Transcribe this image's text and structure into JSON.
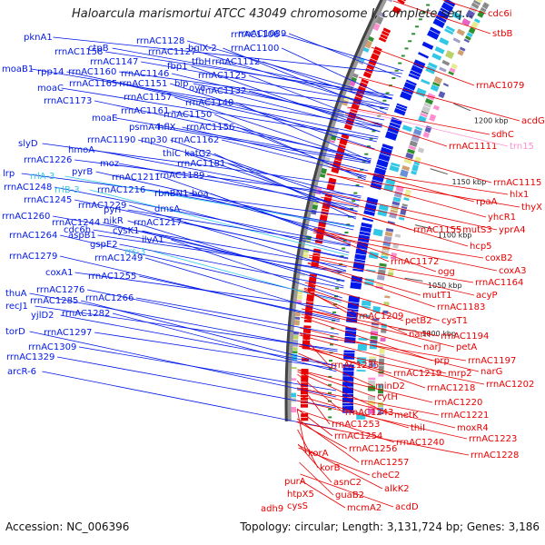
{
  "title": "Haloarcula marismortui ATCC 43049 chromosome I, complete seq...",
  "footer": {
    "accession": "Accession: NC_006396",
    "summary": "Topology: circular; Length: 3,131,724 bp; Genes: 3,186"
  },
  "colors": {
    "left_strand": "#0018e8",
    "right_strand": "#e80000",
    "rna": "#33c7e6",
    "trna_pink": "#ff8fd0"
  },
  "ticks": [
    "1000 kbp",
    "1050 kbp",
    "1100 kbp",
    "1150 kbp",
    "1200 kbp"
  ],
  "left_labels": [
    "pknA1",
    "rrnAC1158",
    "ctpB",
    "rrnAC1128",
    "bglX-2",
    "rrnAC1106",
    "rrnAC1089",
    "rrnAC1100",
    "moaB1",
    "rpp14",
    "rrnAC1160",
    "rrnAC1147",
    "rrnAC1146",
    "rrnAC1127",
    "fbp1",
    "tfbH",
    "rrnAC1112",
    "moaC",
    "rrnAC1165",
    "rrnAC1151",
    "blp",
    "oye",
    "rrnAC1125",
    "rrnAC1173",
    "rrnAC1157",
    "rrnAC1132",
    "moaE",
    "rrnAC1161",
    "rrnAC1140",
    "rrnAC1150",
    "psmA4",
    "hflX",
    "rrnAC1156",
    "rrnAC1190",
    "rnp30",
    "rrnAC1162",
    "slyD",
    "hmoA",
    "thiC",
    "katG2",
    "rrnAC1226",
    "moz",
    "rrnAC1181",
    "pyrB",
    "rrnAC1211",
    "rrnAC1189",
    "lrp",
    "rrlA-3",
    "rrnAC1248",
    "rrlB-3",
    "rrnAC1216",
    "rbnBN1",
    "boa",
    "rrnAC1245",
    "rrnAC1229",
    "pyrI",
    "dmsA",
    "rrnAC1260",
    "rrnAC1244",
    "nikR",
    "rrnAC1217",
    "cdc6h",
    "cysK1",
    "ilvA1",
    "rrnAC1264",
    "aspB1",
    "gspE2",
    "rrs-3",
    "rrnAC1249",
    "rrnAC1279",
    "coxA1",
    "rrnAC1255",
    "rrnAC1276",
    "thuA",
    "rrnAC1285",
    "rrnAC1266",
    "recJ1",
    "yjlD2",
    "rrnAC1282",
    "torD",
    "rrnAC1297",
    "rrnAC1309",
    "rrnAC1329",
    "arcR-6"
  ],
  "right_labels": [
    "cdc6i",
    "stbB",
    "rrnAC1079",
    "acdG",
    "sdhC",
    "rrnAC1111",
    "trn15",
    "rrnAC1115",
    "hlx1",
    "thyX",
    "rpaA",
    "yhcR1",
    "rrnAC1155",
    "mutS3",
    "yprA4",
    "hcp5",
    "coxB2",
    "rrnAC1172",
    "coxA3",
    "ogg",
    "rrnAC1164",
    "mutT1",
    "acyP",
    "rrnAC1183",
    "rrnAC1209",
    "petB2",
    "cysT1",
    "narH",
    "rrnAC1194",
    "narJ",
    "petA",
    "prp",
    "rrnAC1197",
    "rrnAC1235",
    "mrp2",
    "narG",
    "rrnAC1219",
    "minD2",
    "rrnAC1202",
    "rrnAC1218",
    "cytH",
    "rrnAC1220",
    "rrnAC1243",
    "metK",
    "rrnAC1221",
    "thiI",
    "moxR4",
    "rrnAC1253",
    "rrnAC1254",
    "rrnAC1240",
    "rrnAC1223",
    "korA",
    "rrnAC1256",
    "rrnAC1228",
    "korB",
    "rrnAC1257",
    "cheC2",
    "purA",
    "asnC2",
    "alkK2",
    "htpX5",
    "guaB2",
    "adh9",
    "cysS",
    "mcmA2",
    "acdD"
  ]
}
